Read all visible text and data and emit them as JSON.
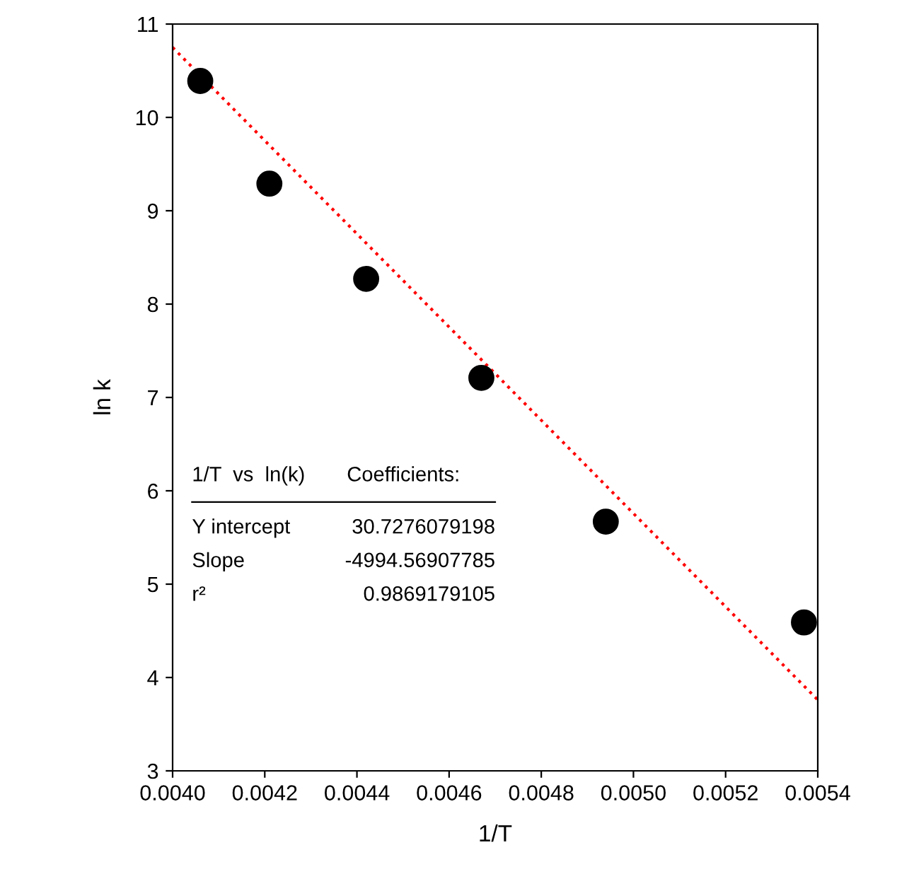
{
  "chart_data": {
    "type": "scatter",
    "xlabel": "1/T",
    "ylabel": "ln k",
    "xlim": [
      0.004,
      0.0054
    ],
    "ylim": [
      3,
      11
    ],
    "xticks": [
      {
        "value": 0.004,
        "label": "0.0040"
      },
      {
        "value": 0.0042,
        "label": "0.0042"
      },
      {
        "value": 0.0044,
        "label": "0.0044"
      },
      {
        "value": 0.0046,
        "label": "0.0046"
      },
      {
        "value": 0.0048,
        "label": "0.0048"
      },
      {
        "value": 0.005,
        "label": "0.0050"
      },
      {
        "value": 0.0052,
        "label": "0.0052"
      },
      {
        "value": 0.0054,
        "label": "0.0054"
      }
    ],
    "yticks": [
      3,
      4,
      5,
      6,
      7,
      8,
      9,
      10,
      11
    ],
    "grid": false,
    "legend": false,
    "marker": "circle",
    "series": [
      {
        "color": "#000000",
        "x": [
          0.00406,
          0.00421,
          0.00442,
          0.00467,
          0.00494,
          0.00537
        ],
        "values": [
          10.39,
          9.29,
          8.27,
          7.21,
          5.67,
          4.59
        ]
      },
      {
        "type": "line",
        "color": "#ff0000",
        "line_style": "dotted",
        "marker": "none",
        "x": [
          0.004,
          0.0054
        ],
        "values": [
          10.75,
          3.76
        ]
      }
    ],
    "annotations": [
      "1/T  vs  ln(k)",
      "Coefficients:",
      "Y intercept",
      "30.7276079198",
      "Slope",
      "-4994.56907785",
      "r²",
      "0.9869179105"
    ]
  }
}
